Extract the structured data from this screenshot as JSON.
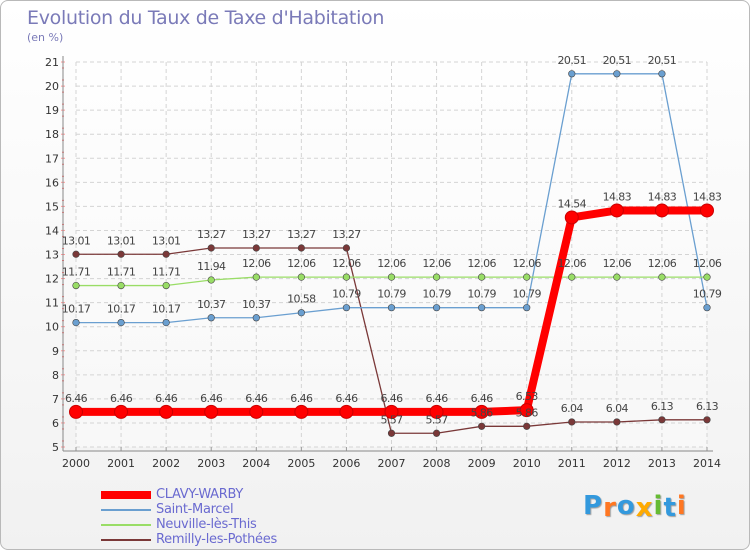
{
  "title": "Evolution du Taux de Taxe d'Habitation",
  "unit": "(en %)",
  "chart_data": {
    "type": "line",
    "x": [
      "2000",
      "2001",
      "2002",
      "2003",
      "2004",
      "2005",
      "2006",
      "2007",
      "2008",
      "2009",
      "2010",
      "2011",
      "2012",
      "2013",
      "2014"
    ],
    "ylim": [
      5,
      21
    ],
    "yticks": [
      "5",
      "6",
      "7",
      "8",
      "9",
      "10",
      "11",
      "12",
      "13",
      "14",
      "15",
      "16",
      "17",
      "18",
      "19",
      "20",
      "21"
    ],
    "grid": true,
    "legend_position": "bottom-left",
    "series": [
      {
        "name": "CLAVY-WARBY",
        "color": "#ff0000",
        "values": [
          6.46,
          6.46,
          6.46,
          6.46,
          6.46,
          6.46,
          6.46,
          6.46,
          6.46,
          6.46,
          6.53,
          14.54,
          14.83,
          14.83,
          14.83
        ],
        "labels": [
          "6.46",
          "6.46",
          "6.46",
          "6.46",
          "6.46",
          "6.46",
          "6.46",
          "6.46",
          "6.46",
          "6.46",
          "6.53",
          "14.54",
          "14.83",
          "14.83",
          "14.83"
        ]
      },
      {
        "name": "Saint-Marcel",
        "color": "#6a9fd0",
        "values": [
          10.17,
          10.17,
          10.17,
          10.37,
          10.37,
          10.58,
          10.79,
          10.79,
          10.79,
          10.79,
          10.79,
          20.51,
          20.51,
          20.51,
          10.79
        ],
        "labels": [
          "10.17",
          "10.17",
          "10.17",
          "10.37",
          "10.37",
          "10.58",
          "10.79",
          "10.79",
          "10.79",
          "10.79",
          "10.79",
          "20.51",
          "20.51",
          "20.51",
          "10.79"
        ]
      },
      {
        "name": "Neuville-lès-This",
        "color": "#99dd66",
        "values": [
          11.71,
          11.71,
          11.71,
          11.94,
          12.06,
          12.06,
          12.06,
          12.06,
          12.06,
          12.06,
          12.06,
          12.06,
          12.06,
          12.06,
          12.06
        ],
        "labels": [
          "11.71",
          "11.71",
          "11.71",
          "11.94",
          "12.06",
          "12.06",
          "12.06",
          "12.06",
          "12.06",
          "12.06",
          "12.06",
          "12.06",
          "12.06",
          "12.06",
          "12.06"
        ]
      },
      {
        "name": "Remilly-les-Pothées",
        "color": "#7a3838",
        "values": [
          13.01,
          13.01,
          13.01,
          13.27,
          13.27,
          13.27,
          13.27,
          5.57,
          5.57,
          5.86,
          5.86,
          6.04,
          6.04,
          6.13,
          6.13
        ],
        "labels": [
          "13.01",
          "13.01",
          "13.01",
          "13.27",
          "13.27",
          "13.27",
          "13.27",
          "5.57",
          "5.57",
          "5.86",
          "5.86",
          "6.04",
          "6.04",
          "6.13",
          "6.13"
        ]
      }
    ]
  },
  "logo": {
    "letters": [
      "P",
      "r",
      "o",
      "x",
      "i",
      "t",
      "i"
    ],
    "colors": [
      "#3399dd",
      "#ff7722",
      "#3399dd",
      "#ffaa00",
      "#66bb33",
      "#3399dd",
      "#ff7722"
    ]
  }
}
